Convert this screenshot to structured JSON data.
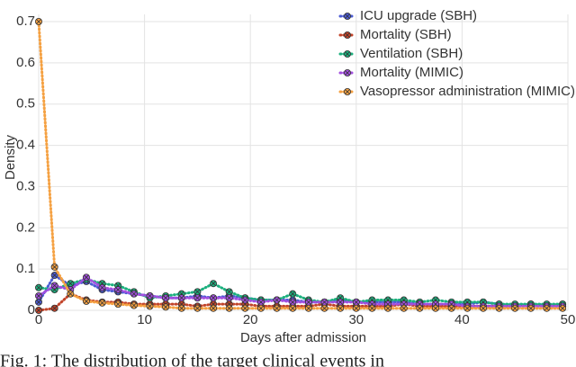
{
  "chart_data": {
    "type": "line",
    "x_label": "Days after admission",
    "y_label": "Density",
    "caption": "Fig. 1: The distribution of the target clinical events in",
    "x": [
      0,
      1.5,
      3,
      4.5,
      6,
      7.5,
      9,
      10.5,
      12,
      13.5,
      15,
      16.5,
      18,
      19.5,
      21,
      22.5,
      24,
      25.5,
      27,
      28.5,
      30,
      31.5,
      33,
      34.5,
      36,
      37.5,
      39,
      40.5,
      42,
      43.5,
      45,
      46.5,
      48,
      49.5
    ],
    "series": [
      {
        "name": "ICU upgrade (SBH)",
        "color": "#4b5bd3",
        "values": [
          0.02,
          0.085,
          0.06,
          0.07,
          0.05,
          0.045,
          0.04,
          0.035,
          0.03,
          0.03,
          0.035,
          0.03,
          0.035,
          0.03,
          0.025,
          0.025,
          0.025,
          0.02,
          0.02,
          0.025,
          0.02,
          0.02,
          0.02,
          0.02,
          0.015,
          0.015,
          0.015,
          0.015,
          0.02,
          0.015,
          0.01,
          0.015,
          0.01,
          0.01
        ]
      },
      {
        "name": "Mortality (SBH)",
        "color": "#c2442a",
        "values": [
          0.0,
          0.005,
          0.04,
          0.025,
          0.02,
          0.02,
          0.015,
          0.015,
          0.015,
          0.015,
          0.01,
          0.015,
          0.015,
          0.015,
          0.01,
          0.01,
          0.01,
          0.01,
          0.015,
          0.01,
          0.01,
          0.01,
          0.01,
          0.015,
          0.01,
          0.01,
          0.01,
          0.01,
          0.01,
          0.01,
          0.01,
          0.015,
          0.01,
          0.015
        ]
      },
      {
        "name": "Ventilation (SBH)",
        "color": "#1cb07e",
        "values": [
          0.055,
          0.05,
          0.065,
          0.075,
          0.065,
          0.06,
          0.045,
          0.03,
          0.035,
          0.04,
          0.045,
          0.065,
          0.045,
          0.03,
          0.025,
          0.025,
          0.04,
          0.025,
          0.02,
          0.03,
          0.02,
          0.025,
          0.025,
          0.025,
          0.02,
          0.025,
          0.02,
          0.02,
          0.02,
          0.015,
          0.015,
          0.015,
          0.015,
          0.015
        ]
      },
      {
        "name": "Mortality (MIMIC)",
        "color": "#a34fe0",
        "values": [
          0.035,
          0.06,
          0.05,
          0.08,
          0.055,
          0.05,
          0.04,
          0.035,
          0.03,
          0.03,
          0.03,
          0.03,
          0.03,
          0.025,
          0.02,
          0.025,
          0.02,
          0.02,
          0.02,
          0.02,
          0.02,
          0.015,
          0.015,
          0.015,
          0.015,
          0.015,
          0.015,
          0.01,
          0.01,
          0.01,
          0.01,
          0.01,
          0.01,
          0.01
        ]
      },
      {
        "name": "Vasopressor administration (MIMIC)",
        "color": "#f5a142",
        "values": [
          0.7,
          0.105,
          0.04,
          0.022,
          0.018,
          0.015,
          0.012,
          0.01,
          0.008,
          0.005,
          0.005,
          0.005,
          0.005,
          0.005,
          0.005,
          0.005,
          0.005,
          0.005,
          0.005,
          0.005,
          0.005,
          0.005,
          0.005,
          0.005,
          0.005,
          0.005,
          0.005,
          0.005,
          0.005,
          0.005,
          0.005,
          0.005,
          0.005,
          0.005
        ]
      }
    ],
    "xlim": [
      0,
      50
    ],
    "xticks": [
      0,
      10,
      20,
      30,
      40,
      50
    ],
    "ylim": [
      0,
      0.7
    ],
    "yticks": [
      0,
      0.1,
      0.2,
      0.3,
      0.4,
      0.5,
      0.6,
      0.7
    ],
    "grid": true,
    "legend": "upper right"
  }
}
